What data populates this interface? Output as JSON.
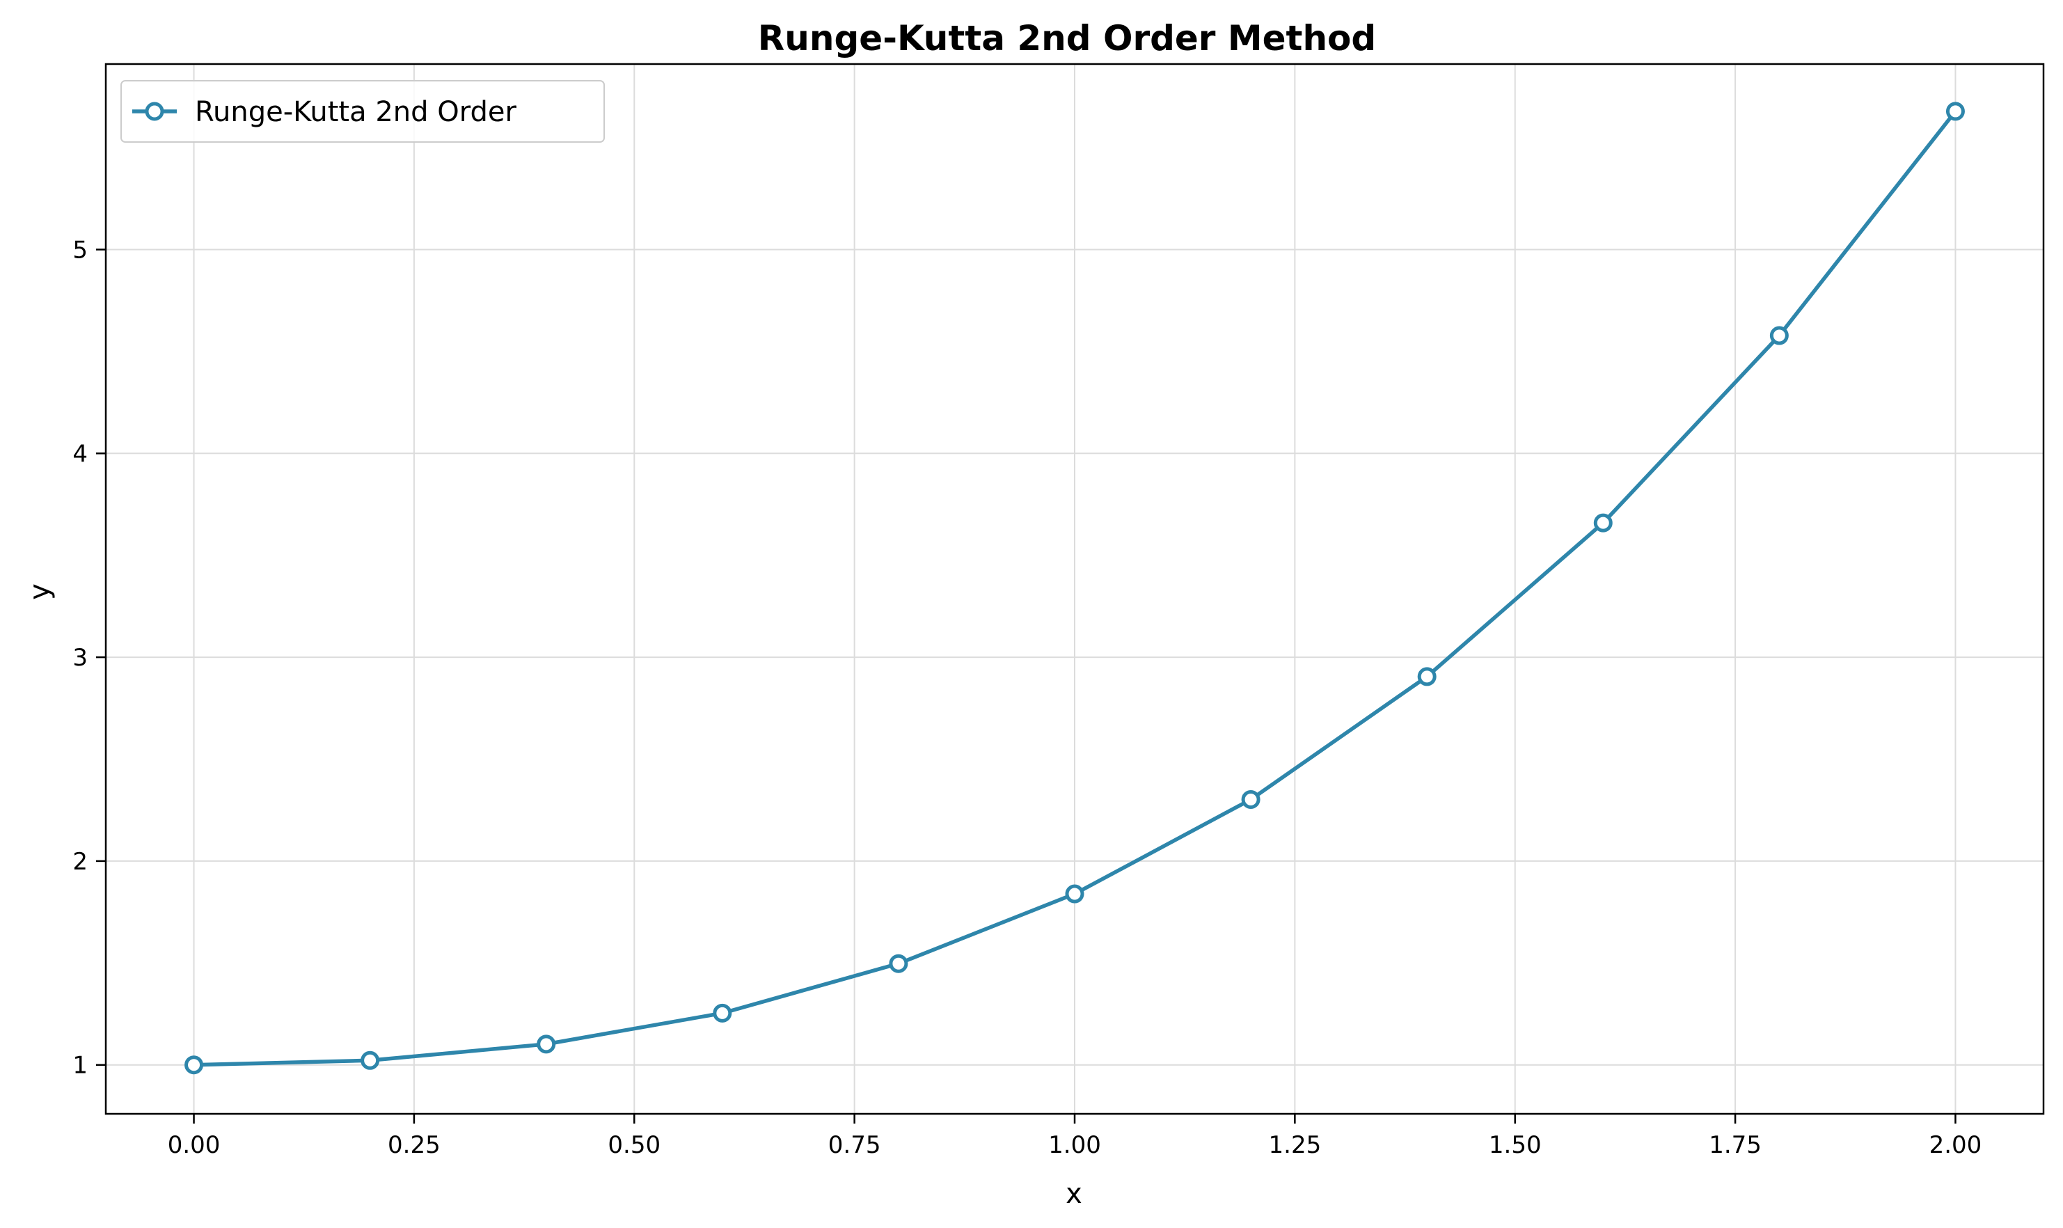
{
  "chart_data": {
    "type": "line",
    "title": "Runge-Kutta 2nd Order Method",
    "xlabel": "x",
    "ylabel": "y",
    "xlim": [
      -0.1,
      2.1
    ],
    "ylim": [
      0.76,
      5.91
    ],
    "xticks": [
      0.0,
      0.25,
      0.5,
      0.75,
      1.0,
      1.25,
      1.5,
      1.75,
      2.0
    ],
    "xtick_labels": [
      "0.00",
      "0.25",
      "0.50",
      "0.75",
      "1.00",
      "1.25",
      "1.50",
      "1.75",
      "2.00"
    ],
    "yticks": [
      1,
      2,
      3,
      4,
      5
    ],
    "ytick_labels": [
      "1",
      "2",
      "3",
      "4",
      "5"
    ],
    "grid": true,
    "legend_position": "upper-left",
    "series": [
      {
        "name": "Runge-Kutta 2nd Order",
        "color": "#2e86ab",
        "marker": "open-circle",
        "x": [
          0.0,
          0.2,
          0.4,
          0.6,
          0.8,
          1.0,
          1.2,
          1.4,
          1.6,
          1.8,
          2.0
        ],
        "y": [
          1.0,
          1.022,
          1.102,
          1.254,
          1.497,
          1.839,
          2.302,
          2.905,
          3.659,
          4.578,
          5.678
        ]
      }
    ]
  }
}
